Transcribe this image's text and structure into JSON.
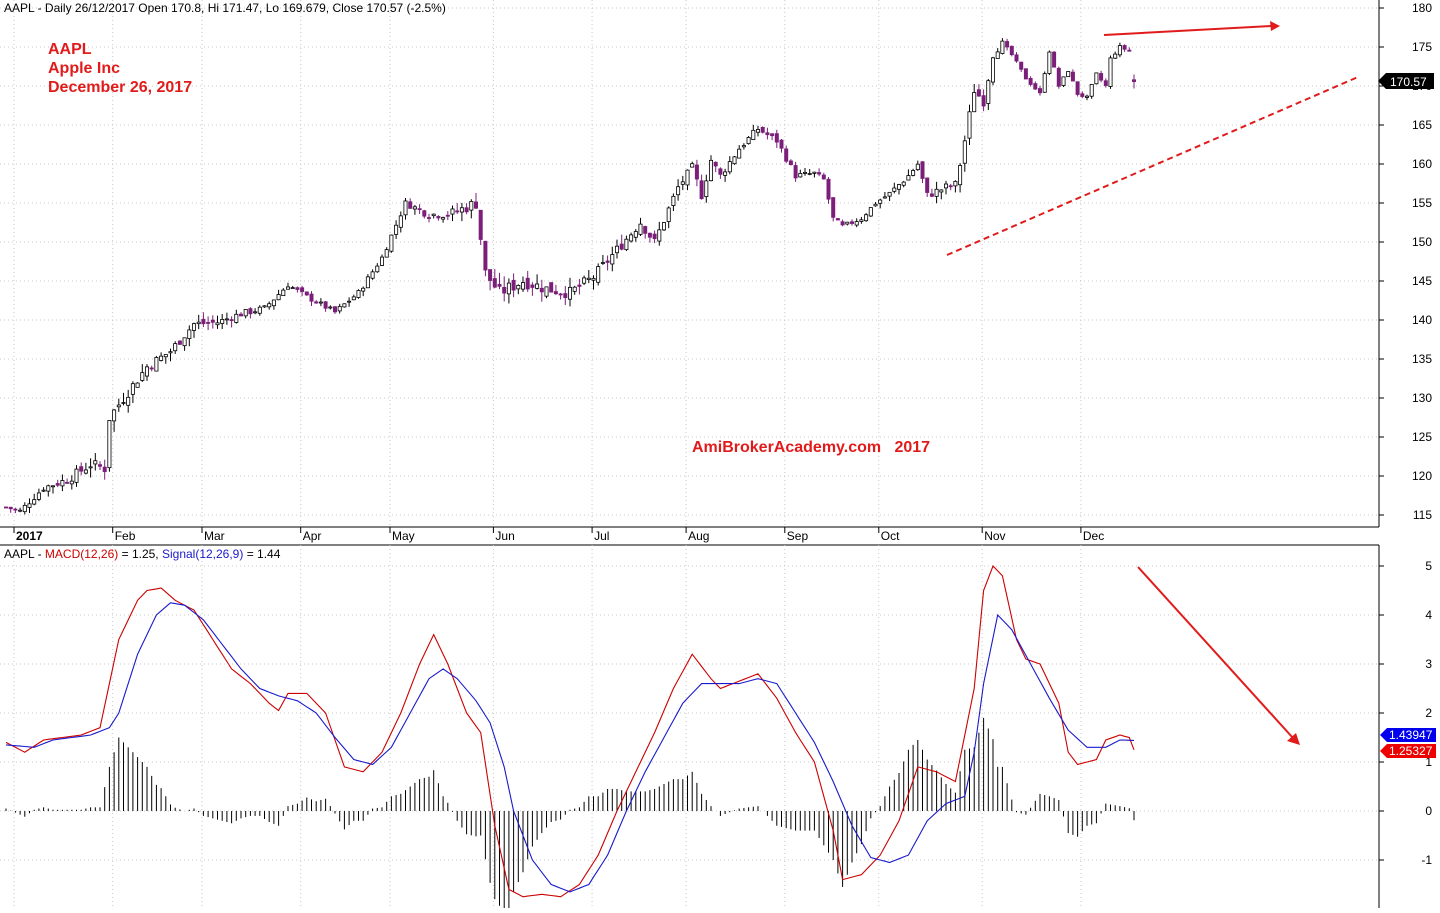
{
  "header": {
    "price_info": "AAPL - Daily 26/12/2017 Open 170.8, Hi 171.47, Lo 169.679, Close 170.57 (-2.5%)",
    "macd_prefix": "AAPL - ",
    "macd_label": "MACD(12,26)",
    "macd_value": " = 1.25, ",
    "signal_label": "Signal(12,26,9)",
    "signal_value": " = 1.44"
  },
  "overlay": {
    "ticker": "AAPL",
    "company": "Apple Inc",
    "date": "December 26, 2017",
    "watermark": "AmiBrokerAcademy.com   2017"
  },
  "badges": {
    "close": "170.57",
    "signal": "1.43947",
    "macd": "1.25327"
  },
  "colors": {
    "up_candle": "#ffffff",
    "down_candle": "#7b1f7a",
    "macd_line": "#cc0000",
    "signal_line": "#1a1acc",
    "histogram": "#000000",
    "annotation": "#e11b1b",
    "badge_close": "#000000",
    "badge_signal": "#0000ee",
    "badge_macd": "#ee0000"
  },
  "chart_data": [
    {
      "type": "candlestick",
      "title": "AAPL - Daily 26/12/2017 Open 170.8, Hi 171.47, Lo 169.679, Close 170.57 (-2.5%)",
      "x_labels": [
        "2017",
        "Feb",
        "Mar",
        "Apr",
        "May",
        "Jun",
        "Jul",
        "Aug",
        "Sep",
        "Oct",
        "Nov",
        "Dec"
      ],
      "x_label_day": [
        0,
        21,
        40,
        61,
        80,
        102,
        123,
        143,
        164,
        184,
        206,
        227
      ],
      "ylim": [
        112,
        181
      ],
      "yticks": [
        115,
        120,
        125,
        130,
        135,
        140,
        145,
        150,
        155,
        160,
        165,
        170,
        175,
        180
      ],
      "last": {
        "open": 170.8,
        "high": 171.47,
        "low": 169.679,
        "close": 170.57
      },
      "anchors": [
        [
          0,
          116
        ],
        [
          3,
          115.5
        ],
        [
          8,
          118.5
        ],
        [
          13,
          119.5
        ],
        [
          18,
          121.5
        ],
        [
          21,
          121.0
        ],
        [
          22,
          127.5
        ],
        [
          25,
          130
        ],
        [
          30,
          134
        ],
        [
          35,
          136
        ],
        [
          40,
          139.5
        ],
        [
          45,
          139.7
        ],
        [
          50,
          140.8
        ],
        [
          55,
          141.5
        ],
        [
          60,
          144.5
        ],
        [
          64,
          143
        ],
        [
          70,
          141
        ],
        [
          75,
          143.5
        ],
        [
          80,
          148
        ],
        [
          85,
          155
        ],
        [
          90,
          153.5
        ],
        [
          95,
          153.7
        ],
        [
          100,
          155
        ],
        [
          102,
          146
        ],
        [
          105,
          143.5
        ],
        [
          110,
          145
        ],
        [
          115,
          144
        ],
        [
          120,
          143.5
        ],
        [
          125,
          145.5
        ],
        [
          130,
          149
        ],
        [
          135,
          152.5
        ],
        [
          138,
          150
        ],
        [
          143,
          157
        ],
        [
          146,
          159.5
        ],
        [
          148,
          156
        ],
        [
          150,
          160.5
        ],
        [
          152,
          158.5
        ],
        [
          156,
          162
        ],
        [
          160,
          164.5
        ],
        [
          164,
          163
        ],
        [
          168,
          158.5
        ],
        [
          172,
          158.8
        ],
        [
          174,
          158
        ],
        [
          176,
          153
        ],
        [
          178,
          152
        ],
        [
          182,
          153
        ],
        [
          185,
          155
        ],
        [
          188,
          156.2
        ],
        [
          192,
          158.5
        ],
        [
          194,
          160
        ],
        [
          196,
          156
        ],
        [
          200,
          157
        ],
        [
          202,
          157.3
        ],
        [
          203,
          160
        ],
        [
          204,
          163
        ],
        [
          206,
          169.5
        ],
        [
          208,
          168
        ],
        [
          210,
          174
        ],
        [
          212,
          175.5
        ],
        [
          214,
          174
        ],
        [
          217,
          171
        ],
        [
          220,
          169
        ],
        [
          222,
          174.5
        ],
        [
          224,
          170
        ],
        [
          226,
          172
        ],
        [
          228,
          169
        ],
        [
          230,
          168.5
        ],
        [
          232,
          171.5
        ],
        [
          234,
          170
        ],
        [
          235,
          173.5
        ],
        [
          237,
          175
        ],
        [
          239,
          174.5
        ],
        [
          240,
          170.57
        ]
      ],
      "hl_anchors": [
        [
          0,
          1.2
        ],
        [
          22,
          3.2
        ],
        [
          60,
          1.4
        ],
        [
          85,
          1.5
        ],
        [
          102,
          3.6
        ],
        [
          168,
          1.6
        ],
        [
          182,
          1.2
        ],
        [
          204,
          2.6
        ],
        [
          208,
          2.3
        ],
        [
          214,
          0.8
        ],
        [
          240,
          0.9
        ]
      ]
    },
    {
      "type": "line",
      "title": "AAPL - MACD(12,26) = 1.25, Signal(12,26,9) = 1.44",
      "ylim": [
        -1.95,
        5.3
      ],
      "yticks": [
        -1,
        0,
        1,
        2,
        3,
        4,
        5
      ],
      "series": [
        {
          "name": "MACD(12,26)",
          "last": 1.25,
          "points": [
            [
              0,
              1.4
            ],
            [
              4,
              1.2
            ],
            [
              8,
              1.45
            ],
            [
              12,
              1.5
            ],
            [
              16,
              1.55
            ],
            [
              20,
              1.7
            ],
            [
              24,
              3.5
            ],
            [
              28,
              4.3
            ],
            [
              30,
              4.5
            ],
            [
              33,
              4.55
            ],
            [
              36,
              4.3
            ],
            [
              40,
              4.1
            ],
            [
              44,
              3.5
            ],
            [
              48,
              2.9
            ],
            [
              52,
              2.6
            ],
            [
              56,
              2.2
            ],
            [
              58,
              2.05
            ],
            [
              60,
              2.4
            ],
            [
              64,
              2.4
            ],
            [
              68,
              2.0
            ],
            [
              72,
              0.9
            ],
            [
              76,
              0.8
            ],
            [
              80,
              1.2
            ],
            [
              84,
              2.0
            ],
            [
              88,
              3.0
            ],
            [
              91,
              3.6
            ],
            [
              94,
              3.0
            ],
            [
              98,
              2.0
            ],
            [
              101,
              1.6
            ],
            [
              104,
              -0.3
            ],
            [
              107,
              -1.6
            ],
            [
              110,
              -1.75
            ],
            [
              114,
              -1.7
            ],
            [
              118,
              -1.75
            ],
            [
              122,
              -1.5
            ],
            [
              126,
              -0.9
            ],
            [
              130,
              0.0
            ],
            [
              134,
              0.8
            ],
            [
              138,
              1.6
            ],
            [
              142,
              2.5
            ],
            [
              146,
              3.2
            ],
            [
              150,
              2.7
            ],
            [
              152,
              2.5
            ],
            [
              156,
              2.65
            ],
            [
              160,
              2.8
            ],
            [
              164,
              2.3
            ],
            [
              168,
              1.6
            ],
            [
              172,
              1.0
            ],
            [
              176,
              -0.4
            ],
            [
              178,
              -1.4
            ],
            [
              182,
              -1.3
            ],
            [
              186,
              -0.9
            ],
            [
              190,
              -0.2
            ],
            [
              194,
              0.9
            ],
            [
              198,
              0.8
            ],
            [
              202,
              0.6
            ],
            [
              206,
              2.5
            ],
            [
              208,
              4.5
            ],
            [
              210,
              5.0
            ],
            [
              212,
              4.8
            ],
            [
              215,
              3.5
            ],
            [
              217,
              3.1
            ],
            [
              220,
              3.0
            ],
            [
              224,
              2.2
            ],
            [
              226,
              1.2
            ],
            [
              228,
              0.95
            ],
            [
              232,
              1.05
            ],
            [
              234,
              1.45
            ],
            [
              237,
              1.55
            ],
            [
              239,
              1.5
            ],
            [
              240,
              1.25
            ]
          ]
        },
        {
          "name": "Signal(12,26,9)",
          "last": 1.44,
          "points": [
            [
              0,
              1.35
            ],
            [
              6,
              1.3
            ],
            [
              10,
              1.45
            ],
            [
              14,
              1.5
            ],
            [
              18,
              1.55
            ],
            [
              22,
              1.7
            ],
            [
              24,
              2.0
            ],
            [
              28,
              3.2
            ],
            [
              32,
              4.0
            ],
            [
              35,
              4.25
            ],
            [
              38,
              4.2
            ],
            [
              42,
              3.9
            ],
            [
              46,
              3.4
            ],
            [
              50,
              2.9
            ],
            [
              54,
              2.5
            ],
            [
              58,
              2.35
            ],
            [
              62,
              2.25
            ],
            [
              66,
              2.0
            ],
            [
              70,
              1.5
            ],
            [
              74,
              1.05
            ],
            [
              78,
              0.95
            ],
            [
              82,
              1.3
            ],
            [
              86,
              2.0
            ],
            [
              90,
              2.7
            ],
            [
              93,
              2.9
            ],
            [
              96,
              2.7
            ],
            [
              100,
              2.25
            ],
            [
              103,
              1.8
            ],
            [
              106,
              0.9
            ],
            [
              108,
              0.0
            ],
            [
              112,
              -1.0
            ],
            [
              116,
              -1.5
            ],
            [
              120,
              -1.65
            ],
            [
              124,
              -1.5
            ],
            [
              128,
              -0.9
            ],
            [
              132,
              0.0
            ],
            [
              136,
              0.8
            ],
            [
              140,
              1.5
            ],
            [
              144,
              2.2
            ],
            [
              148,
              2.6
            ],
            [
              152,
              2.6
            ],
            [
              156,
              2.6
            ],
            [
              160,
              2.7
            ],
            [
              164,
              2.6
            ],
            [
              168,
              2.0
            ],
            [
              172,
              1.4
            ],
            [
              176,
              0.6
            ],
            [
              180,
              -0.3
            ],
            [
              184,
              -0.95
            ],
            [
              188,
              -1.05
            ],
            [
              192,
              -0.9
            ],
            [
              196,
              -0.2
            ],
            [
              200,
              0.15
            ],
            [
              204,
              0.3
            ],
            [
              206,
              1.2
            ],
            [
              208,
              2.6
            ],
            [
              211,
              4.0
            ],
            [
              214,
              3.7
            ],
            [
              218,
              3.0
            ],
            [
              222,
              2.3
            ],
            [
              226,
              1.65
            ],
            [
              230,
              1.3
            ],
            [
              234,
              1.3
            ],
            [
              237,
              1.45
            ],
            [
              240,
              1.44
            ]
          ]
        }
      ]
    }
  ]
}
